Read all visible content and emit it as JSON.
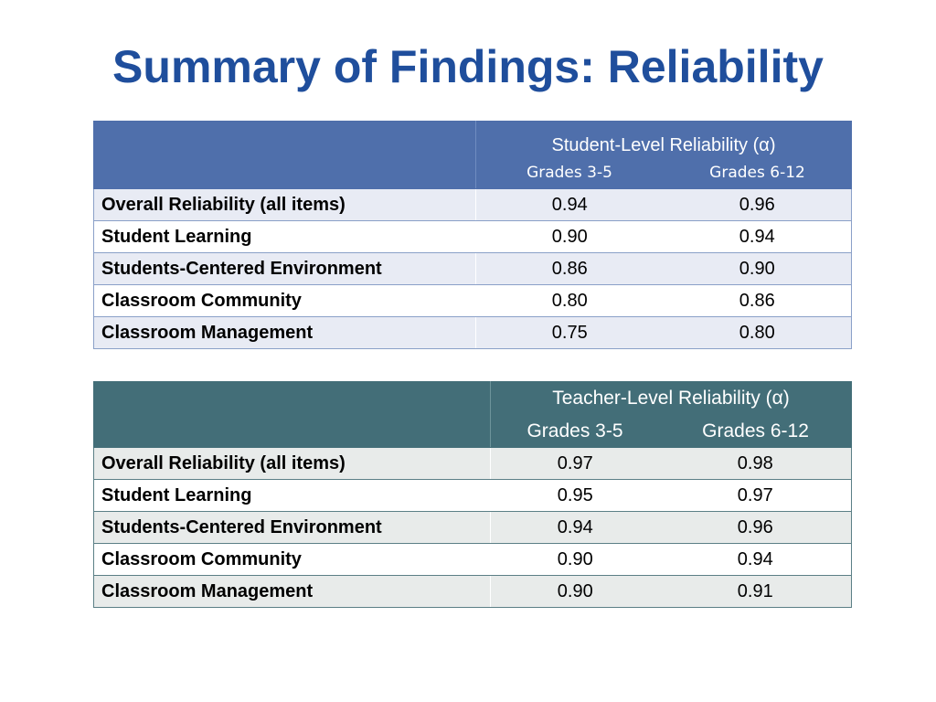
{
  "title": "Summary of Findings: Reliability",
  "colors": {
    "title": "#1f4e9c",
    "student_header": "#4f6fab",
    "teacher_header": "#436e78",
    "student_band": "#e8ebf4",
    "teacher_band": "#e8ebea"
  },
  "student_table": {
    "header": "Student-Level Reliability (α)",
    "grade_low": "Grades 3-5",
    "grade_high": "Grades 6-12",
    "rows": [
      {
        "label": "Overall Reliability (all items)",
        "g35": "0.94",
        "g612": "0.96"
      },
      {
        "label": "Student Learning",
        "g35": "0.90",
        "g612": "0.94"
      },
      {
        "label": "Students-Centered Environment",
        "g35": "0.86",
        "g612": "0.90"
      },
      {
        "label": "Classroom Community",
        "g35": "0.80",
        "g612": "0.86"
      },
      {
        "label": "Classroom Management",
        "g35": "0.75",
        "g612": "0.80"
      }
    ]
  },
  "teacher_table": {
    "header": "Teacher-Level Reliability (α)",
    "grade_low": "Grades 3-5",
    "grade_high": "Grades 6-12",
    "rows": [
      {
        "label": "Overall Reliability (all items)",
        "g35": "0.97",
        "g612": "0.98"
      },
      {
        "label": "Student Learning",
        "g35": "0.95",
        "g612": "0.97"
      },
      {
        "label": "Students-Centered Environment",
        "g35": "0.94",
        "g612": "0.96"
      },
      {
        "label": "Classroom Community",
        "g35": "0.90",
        "g612": "0.94"
      },
      {
        "label": "Classroom Management",
        "g35": "0.90",
        "g612": "0.91"
      }
    ]
  }
}
